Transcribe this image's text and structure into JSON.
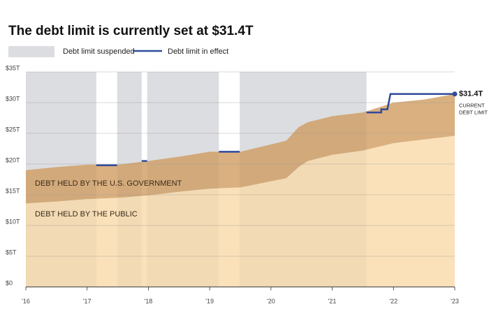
{
  "chart_data": {
    "type": "stacked-area",
    "title": "The debt limit is currently set at $31.4T",
    "x": [
      2016,
      2016.5,
      2017,
      2017.5,
      2018,
      2018.5,
      2019,
      2019.5,
      2020,
      2020.25,
      2020.45,
      2020.6,
      2021,
      2021.5,
      2022,
      2022.5,
      2023
    ],
    "series": [
      {
        "name": "DEBT HELD BY THE PUBLIC",
        "color": "#f8d9a6",
        "values": [
          13.6,
          13.9,
          14.3,
          14.5,
          14.9,
          15.5,
          16.0,
          16.2,
          17.2,
          17.7,
          19.5,
          20.5,
          21.5,
          22.2,
          23.4,
          24.0,
          24.6
        ]
      },
      {
        "name": "DEBT HELD BY THE U.S. GOVERNMENT",
        "color": "#cf9a5c",
        "values": [
          5.4,
          5.6,
          5.6,
          5.4,
          5.6,
          5.7,
          6.0,
          5.8,
          6.0,
          6.1,
          6.5,
          6.3,
          6.3,
          6.2,
          6.6,
          6.5,
          6.8
        ]
      }
    ],
    "suspended": {
      "name": "Debt limit suspended",
      "color": "#dcdde1",
      "periods": [
        [
          2016,
          2017.15
        ],
        [
          2017.49,
          2017.89
        ],
        [
          2017.98,
          2019.15
        ],
        [
          2019.49,
          2021.56
        ]
      ]
    },
    "limit": {
      "name": "Debt limit in effect",
      "color": "#2f4a9a",
      "x": [
        2017.15,
        2017.49,
        2017.6,
        2017.89,
        2017.98,
        2018.5,
        2019.15,
        2019.49,
        2020,
        2021.56,
        2021.8,
        2021.8,
        2021.9,
        2021.95,
        2023
      ],
      "values": [
        19.8,
        19.8,
        null,
        20.5,
        20.5,
        null,
        22.0,
        22.0,
        null,
        28.4,
        28.4,
        28.9,
        28.9,
        31.4,
        31.4
      ],
      "end_label": "$31.4T",
      "end_note": [
        "CURRENT",
        "DEBT LIMIT"
      ]
    },
    "xlim": [
      2016,
      2023
    ],
    "xticks": [
      {
        "value": 2016,
        "label": "'16"
      },
      {
        "value": 2017,
        "label": "'17"
      },
      {
        "value": 2018,
        "label": "'18"
      },
      {
        "value": 2019,
        "label": "'19"
      },
      {
        "value": 2020,
        "label": "'20"
      },
      {
        "value": 2021,
        "label": "'21"
      },
      {
        "value": 2022,
        "label": "'22"
      },
      {
        "value": 2023,
        "label": "'23"
      }
    ],
    "ylim": [
      0,
      35
    ],
    "yticks": [
      {
        "value": 0,
        "label": "$0"
      },
      {
        "value": 5,
        "label": "$5T"
      },
      {
        "value": 10,
        "label": "$10T"
      },
      {
        "value": 15,
        "label": "$15T"
      },
      {
        "value": 20,
        "label": "$20T"
      },
      {
        "value": 25,
        "label": "$25T"
      },
      {
        "value": 30,
        "label": "$30T"
      },
      {
        "value": 35,
        "label": "$35T"
      }
    ],
    "grid": true
  }
}
